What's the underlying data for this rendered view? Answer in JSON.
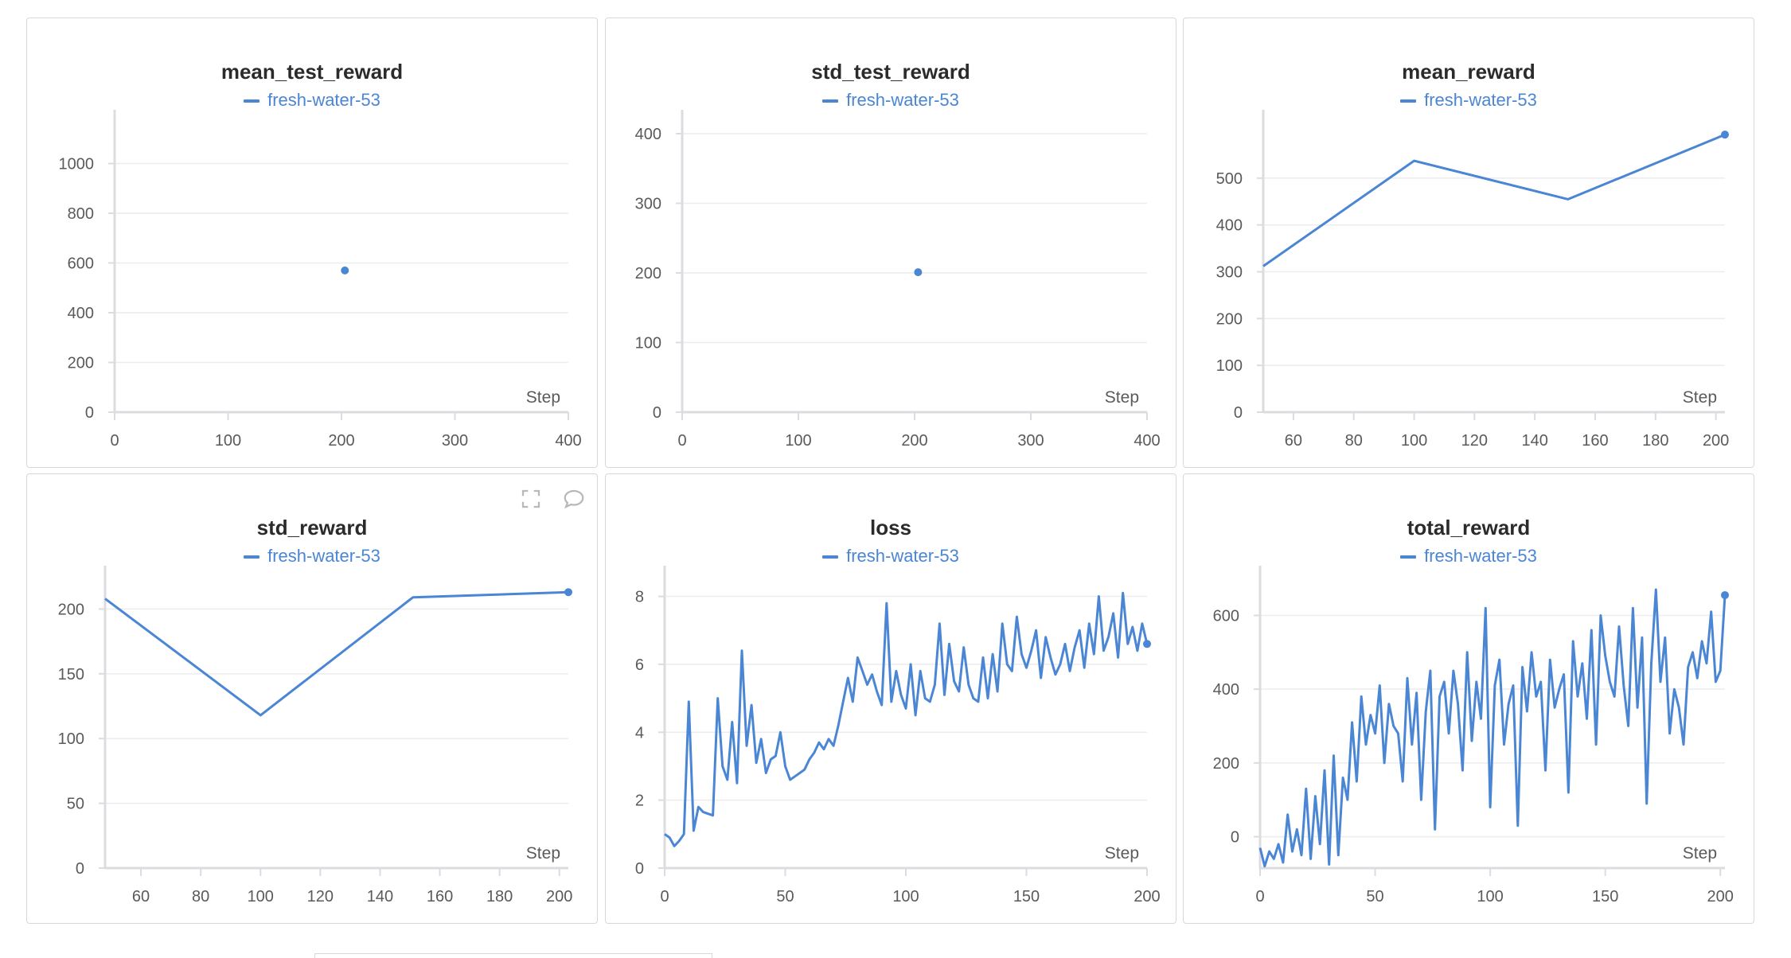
{
  "colors": {
    "series": "#4a86d4",
    "grid": "#ececef",
    "axis": "#dcdce0"
  },
  "icons": {
    "expand": "expand-icon",
    "comment": "comment-icon"
  },
  "chart_data": [
    {
      "id": "mean_test_reward",
      "type": "scatter",
      "title": "mean_test_reward",
      "legend": [
        "fresh-water-53"
      ],
      "xlabel": "Step",
      "xlim": [
        0,
        400
      ],
      "ylim": [
        0,
        1120
      ],
      "xticks": [
        0,
        100,
        200,
        300,
        400
      ],
      "yticks": [
        0,
        200,
        400,
        600,
        800,
        1000
      ],
      "x": [
        203
      ],
      "y": [
        570
      ],
      "endpoint": false
    },
    {
      "id": "std_test_reward",
      "type": "scatter",
      "title": "std_test_reward",
      "legend": [
        "fresh-water-53"
      ],
      "xlabel": "Step",
      "xlim": [
        0,
        400
      ],
      "ylim": [
        0,
        400
      ],
      "xticks": [
        0,
        100,
        200,
        300,
        400
      ],
      "yticks": [
        0,
        100,
        200,
        300,
        400
      ],
      "x": [
        203
      ],
      "y": [
        201
      ],
      "endpoint": false
    },
    {
      "id": "mean_reward",
      "type": "line",
      "title": "mean_reward",
      "legend": [
        "fresh-water-53"
      ],
      "xlabel": "Step",
      "xlim": [
        50,
        203
      ],
      "ylim": [
        0,
        595
      ],
      "xticks": [
        60,
        80,
        100,
        120,
        140,
        160,
        180,
        200
      ],
      "yticks": [
        0,
        100,
        200,
        300,
        400,
        500
      ],
      "x": [
        50,
        100,
        151,
        203
      ],
      "y": [
        312,
        537,
        455,
        593
      ],
      "endpoint": true
    },
    {
      "id": "std_reward",
      "type": "line",
      "title": "std_reward",
      "legend": [
        "fresh-water-53"
      ],
      "xlabel": "Step",
      "xlim": [
        48,
        203
      ],
      "ylim": [
        0,
        215
      ],
      "xticks": [
        60,
        80,
        100,
        120,
        140,
        160,
        180,
        200
      ],
      "yticks": [
        0,
        50,
        100,
        150,
        200
      ],
      "x": [
        48,
        100,
        151,
        203
      ],
      "y": [
        208,
        118,
        209,
        213
      ],
      "endpoint": true
    },
    {
      "id": "loss",
      "type": "line",
      "title": "loss",
      "legend": [
        "fresh-water-53"
      ],
      "xlabel": "Step",
      "xlim": [
        0,
        200
      ],
      "ylim": [
        0,
        8.2
      ],
      "xticks": [
        0,
        50,
        100,
        150,
        200
      ],
      "yticks": [
        0,
        2,
        4,
        6,
        8
      ],
      "x": [
        0,
        2,
        4,
        6,
        8,
        10,
        12,
        14,
        16,
        18,
        20,
        22,
        24,
        26,
        28,
        30,
        32,
        34,
        36,
        38,
        40,
        42,
        44,
        46,
        48,
        50,
        52,
        54,
        56,
        58,
        60,
        62,
        64,
        66,
        68,
        70,
        72,
        74,
        76,
        78,
        80,
        82,
        84,
        86,
        88,
        90,
        92,
        94,
        96,
        98,
        100,
        102,
        104,
        106,
        108,
        110,
        112,
        114,
        116,
        118,
        120,
        122,
        124,
        126,
        128,
        130,
        132,
        134,
        136,
        138,
        140,
        142,
        144,
        146,
        148,
        150,
        152,
        154,
        156,
        158,
        160,
        162,
        164,
        166,
        168,
        170,
        172,
        174,
        176,
        178,
        180,
        182,
        184,
        186,
        188,
        190,
        192,
        194,
        196,
        198,
        200
      ],
      "y": [
        1.0,
        0.9,
        0.65,
        0.8,
        1.0,
        4.9,
        1.1,
        1.8,
        1.65,
        1.6,
        1.55,
        5.0,
        3.0,
        2.6,
        4.3,
        2.5,
        6.4,
        3.6,
        4.8,
        3.1,
        3.8,
        2.8,
        3.2,
        3.3,
        4.0,
        3.0,
        2.6,
        2.7,
        2.8,
        2.9,
        3.2,
        3.4,
        3.7,
        3.5,
        3.8,
        3.6,
        4.2,
        4.9,
        5.6,
        4.9,
        6.2,
        5.8,
        5.4,
        5.7,
        5.2,
        4.8,
        7.8,
        4.9,
        5.8,
        5.1,
        4.7,
        6.0,
        4.5,
        5.8,
        5.0,
        4.9,
        5.4,
        7.2,
        5.1,
        6.6,
        5.5,
        5.2,
        6.5,
        5.4,
        5.0,
        4.9,
        6.2,
        5.0,
        6.3,
        5.2,
        7.2,
        6.0,
        5.8,
        7.4,
        6.3,
        5.9,
        6.4,
        7.0,
        5.6,
        6.8,
        6.2,
        5.7,
        6.0,
        6.6,
        5.8,
        6.5,
        7.0,
        5.9,
        7.2,
        6.3,
        8.0,
        6.4,
        6.8,
        7.5,
        6.2,
        8.1,
        6.6,
        7.1,
        6.4,
        7.2,
        6.6
      ],
      "endpoint": true
    },
    {
      "id": "total_reward",
      "type": "line",
      "title": "total_reward",
      "legend": [
        "fresh-water-53"
      ],
      "xlabel": "Step",
      "xlim": [
        0,
        202
      ],
      "ylim": [
        -85,
        670
      ],
      "xticks": [
        0,
        50,
        100,
        150,
        200
      ],
      "yticks": [
        0,
        200,
        400,
        600
      ],
      "x": [
        0,
        2,
        4,
        6,
        8,
        10,
        12,
        14,
        16,
        18,
        20,
        22,
        24,
        26,
        28,
        30,
        32,
        34,
        36,
        38,
        40,
        42,
        44,
        46,
        48,
        50,
        52,
        54,
        56,
        58,
        60,
        62,
        64,
        66,
        68,
        70,
        72,
        74,
        76,
        78,
        80,
        82,
        84,
        86,
        88,
        90,
        92,
        94,
        96,
        98,
        100,
        102,
        104,
        106,
        108,
        110,
        112,
        114,
        116,
        118,
        120,
        122,
        124,
        126,
        128,
        130,
        132,
        134,
        136,
        138,
        140,
        142,
        144,
        146,
        148,
        150,
        152,
        154,
        156,
        158,
        160,
        162,
        164,
        166,
        168,
        170,
        172,
        174,
        176,
        178,
        180,
        182,
        184,
        186,
        188,
        190,
        192,
        194,
        196,
        198,
        200,
        202
      ],
      "y": [
        -30,
        -80,
        -40,
        -60,
        -20,
        -70,
        60,
        -40,
        20,
        -50,
        130,
        -60,
        110,
        -20,
        180,
        -75,
        220,
        -50,
        160,
        100,
        310,
        150,
        380,
        250,
        330,
        280,
        410,
        200,
        360,
        300,
        280,
        150,
        430,
        250,
        390,
        100,
        340,
        450,
        20,
        380,
        420,
        280,
        450,
        360,
        180,
        500,
        260,
        420,
        320,
        620,
        80,
        410,
        480,
        250,
        360,
        410,
        30,
        460,
        340,
        500,
        380,
        420,
        180,
        480,
        350,
        400,
        440,
        120,
        530,
        380,
        470,
        320,
        560,
        250,
        600,
        490,
        420,
        380,
        570,
        410,
        300,
        620,
        350,
        540,
        90,
        470,
        670,
        420,
        540,
        280,
        400,
        350,
        250,
        460,
        500,
        430,
        530,
        470,
        610,
        420,
        450,
        655
      ],
      "endpoint": true
    }
  ]
}
